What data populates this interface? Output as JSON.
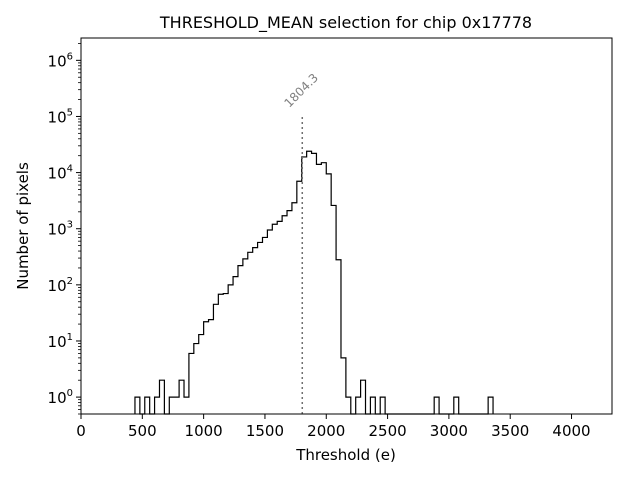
{
  "chart_data": {
    "type": "histogram",
    "title": "THRESHOLD_MEAN selection for chip 0x17778",
    "xlabel": "Threshold (e)",
    "ylabel": "Number of pixels",
    "xlim": [
      0,
      4330
    ],
    "ylim": [
      0.5,
      2500000
    ],
    "yscale": "log",
    "grid": false,
    "x_ticks": [
      0,
      500,
      1000,
      1500,
      2000,
      2500,
      3000,
      3500,
      4000
    ],
    "y_ticks": [
      {
        "base": "10",
        "exp": "0",
        "value": 1
      },
      {
        "base": "10",
        "exp": "1",
        "value": 10
      },
      {
        "base": "10",
        "exp": "2",
        "value": 100
      },
      {
        "base": "10",
        "exp": "3",
        "value": 1000
      },
      {
        "base": "10",
        "exp": "4",
        "value": 10000
      },
      {
        "base": "10",
        "exp": "5",
        "value": 100000
      },
      {
        "base": "10",
        "exp": "6",
        "value": 1000000
      }
    ],
    "bin_width": 40,
    "series": [
      {
        "bins": [
          {
            "x": 440,
            "y": 1
          },
          {
            "x": 520,
            "y": 1
          },
          {
            "x": 600,
            "y": 1
          },
          {
            "x": 640,
            "y": 2
          },
          {
            "x": 720,
            "y": 1
          },
          {
            "x": 760,
            "y": 1
          },
          {
            "x": 800,
            "y": 2
          },
          {
            "x": 840,
            "y": 1
          },
          {
            "x": 880,
            "y": 6
          },
          {
            "x": 920,
            "y": 9
          },
          {
            "x": 960,
            "y": 13
          },
          {
            "x": 1000,
            "y": 22
          },
          {
            "x": 1040,
            "y": 24
          },
          {
            "x": 1080,
            "y": 45
          },
          {
            "x": 1120,
            "y": 68
          },
          {
            "x": 1160,
            "y": 70
          },
          {
            "x": 1200,
            "y": 100
          },
          {
            "x": 1240,
            "y": 140
          },
          {
            "x": 1280,
            "y": 220
          },
          {
            "x": 1320,
            "y": 290
          },
          {
            "x": 1360,
            "y": 380
          },
          {
            "x": 1400,
            "y": 460
          },
          {
            "x": 1440,
            "y": 570
          },
          {
            "x": 1480,
            "y": 700
          },
          {
            "x": 1520,
            "y": 950
          },
          {
            "x": 1560,
            "y": 1200
          },
          {
            "x": 1600,
            "y": 1350
          },
          {
            "x": 1640,
            "y": 1700
          },
          {
            "x": 1680,
            "y": 2100
          },
          {
            "x": 1720,
            "y": 2900
          },
          {
            "x": 1760,
            "y": 7000
          },
          {
            "x": 1800,
            "y": 19000
          },
          {
            "x": 1840,
            "y": 24000
          },
          {
            "x": 1880,
            "y": 22000
          },
          {
            "x": 1920,
            "y": 14000
          },
          {
            "x": 1960,
            "y": 15000
          },
          {
            "x": 2000,
            "y": 9500
          },
          {
            "x": 2040,
            "y": 2600
          },
          {
            "x": 2080,
            "y": 280
          },
          {
            "x": 2120,
            "y": 5
          },
          {
            "x": 2160,
            "y": 1
          },
          {
            "x": 2240,
            "y": 1
          },
          {
            "x": 2280,
            "y": 2
          },
          {
            "x": 2360,
            "y": 1
          },
          {
            "x": 2440,
            "y": 1
          },
          {
            "x": 2880,
            "y": 1
          },
          {
            "x": 3040,
            "y": 1
          },
          {
            "x": 3320,
            "y": 1
          }
        ]
      }
    ],
    "annotation": {
      "label": "1804.3",
      "x": 1804.3
    }
  }
}
